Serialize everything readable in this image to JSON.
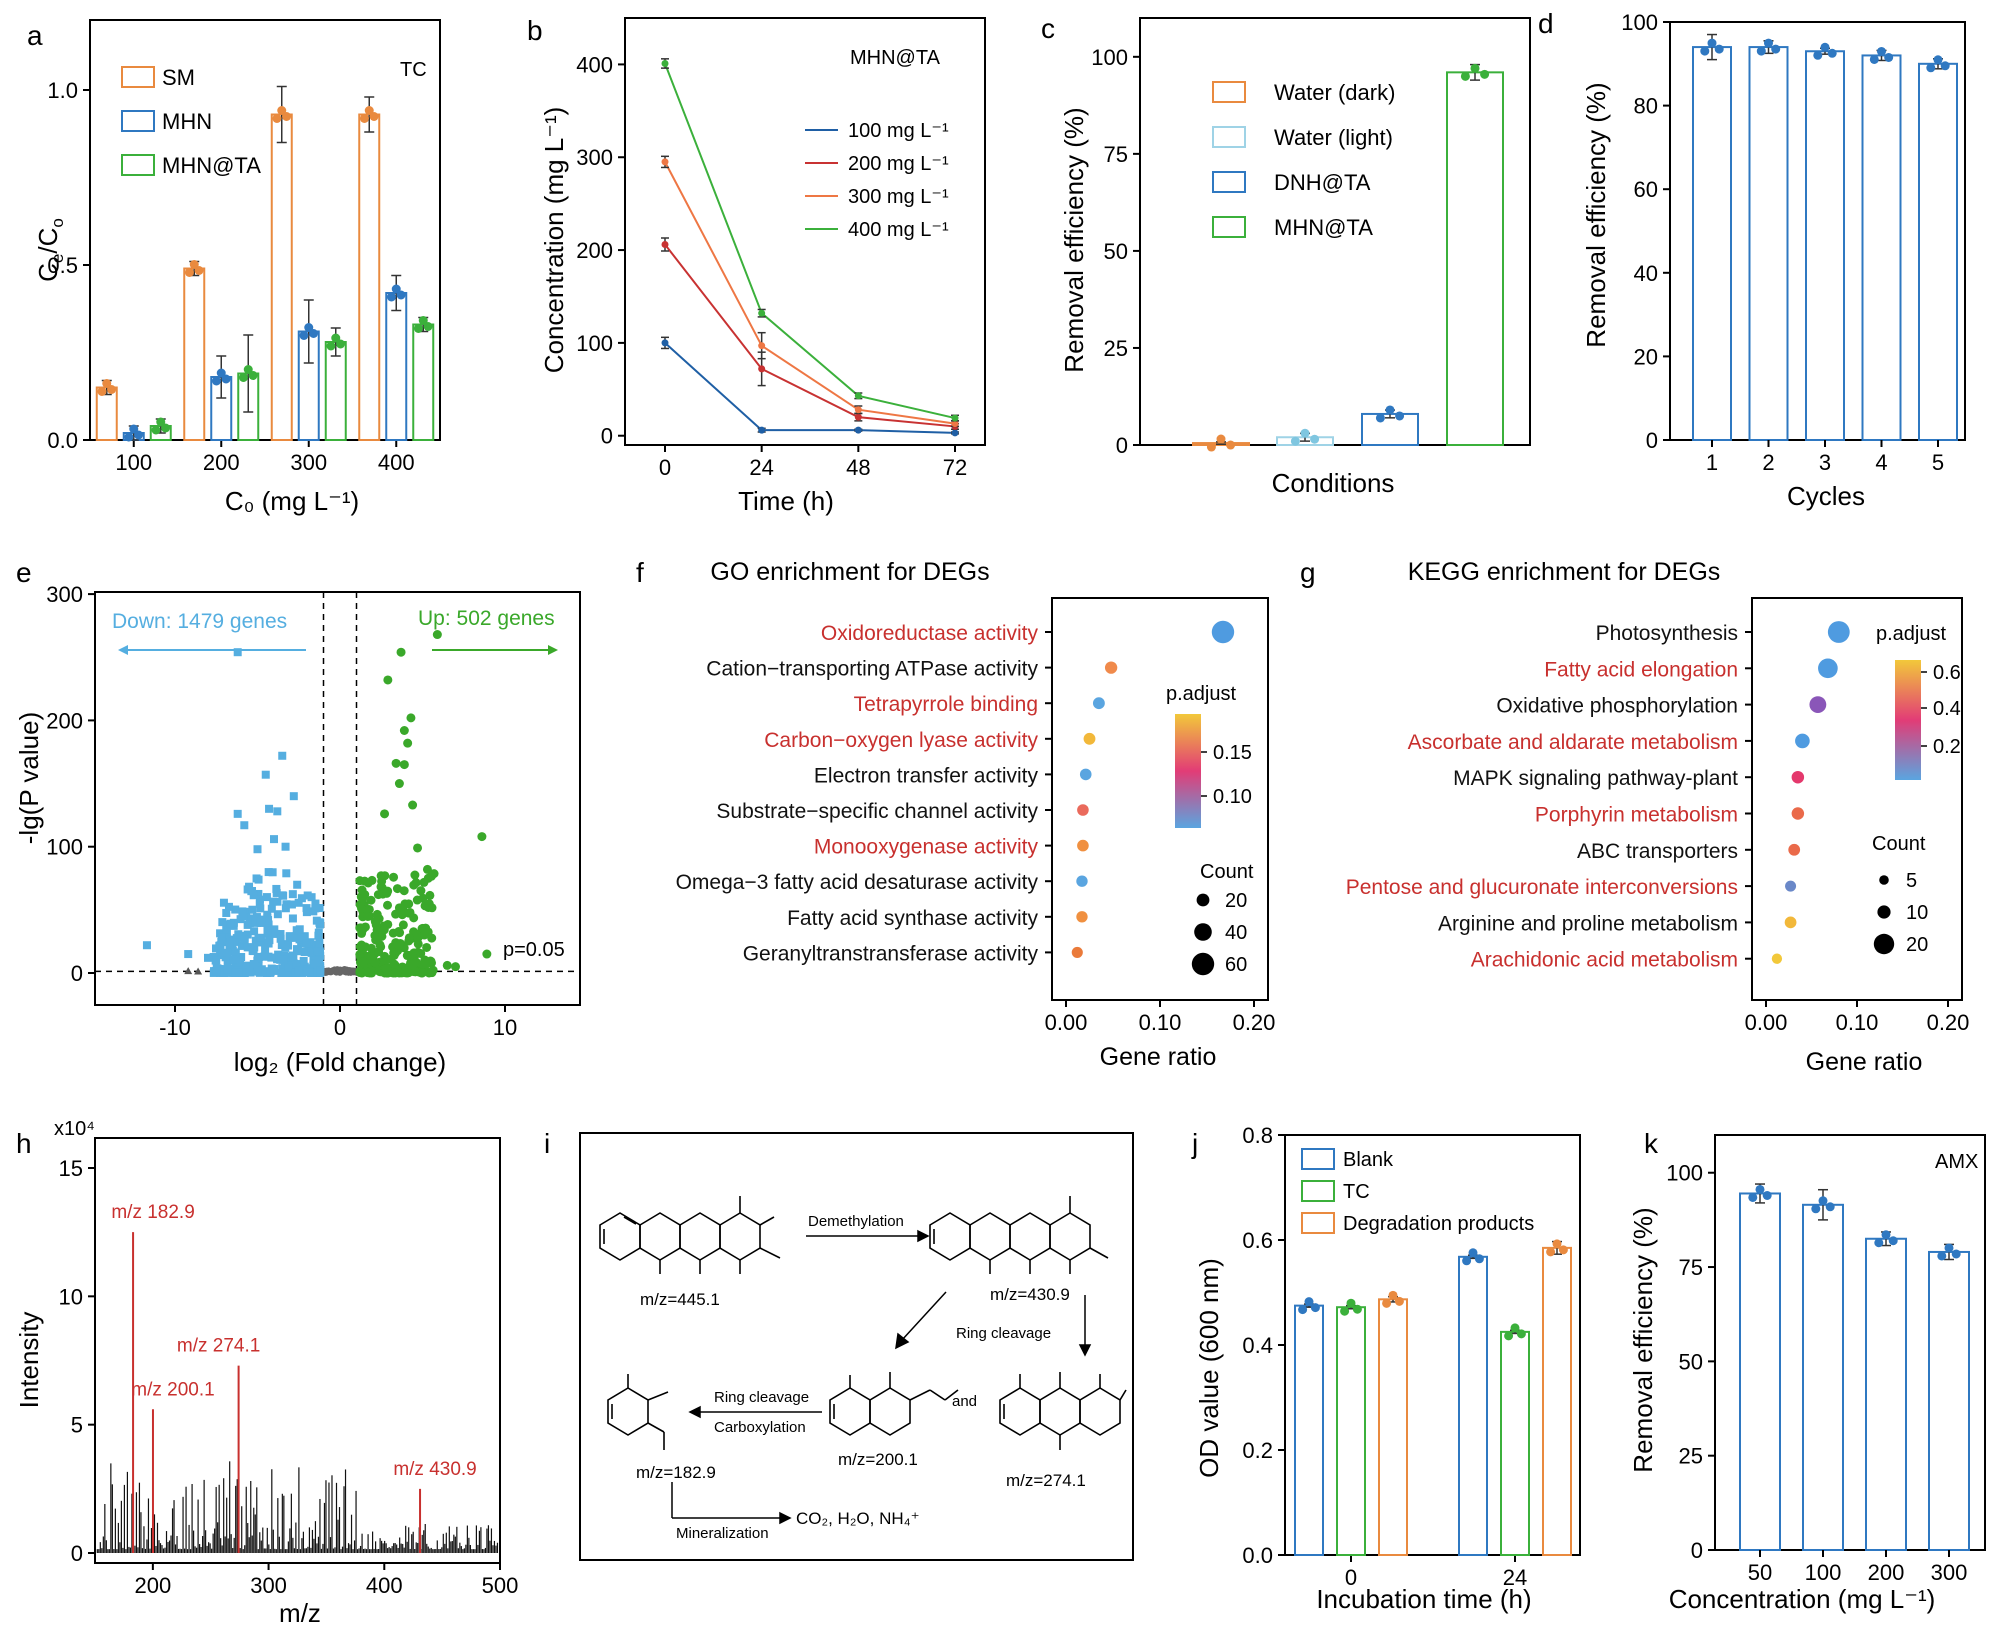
{
  "chart_data": [
    {
      "panel": "a",
      "type": "bar",
      "xlabel": "C₀ (mg L⁻¹)",
      "ylabel_main": "C",
      "ylabel_sub1": "e",
      "ylabel_mid": "/C",
      "ylabel_sub2": "o",
      "annotation": "TC",
      "categories": [
        "100",
        "200",
        "300",
        "400"
      ],
      "yticks": [
        "0.0",
        "0.5",
        "1.0"
      ],
      "ylim": [
        0,
        1.2
      ],
      "series": [
        {
          "name": "SM",
          "color": "#e98a3f",
          "values": [
            0.15,
            0.49,
            0.93,
            0.93
          ],
          "err": [
            0.02,
            0.02,
            0.08,
            0.05
          ]
        },
        {
          "name": "MHN",
          "color": "#2f78c1",
          "values": [
            0.02,
            0.18,
            0.31,
            0.42
          ],
          "err": [
            0.02,
            0.06,
            0.09,
            0.05
          ]
        },
        {
          "name": "MHN@TA",
          "color": "#3bb03b",
          "values": [
            0.04,
            0.19,
            0.28,
            0.33
          ],
          "err": [
            0.02,
            0.11,
            0.04,
            0.02
          ]
        }
      ]
    },
    {
      "panel": "b",
      "type": "line",
      "xlabel": "Time (h)",
      "ylabel": "Concentration (mg L⁻¹)",
      "annotation": "MHN@TA",
      "x": [
        0,
        24,
        48,
        72
      ],
      "xticks": [
        "0",
        "24",
        "48",
        "72"
      ],
      "yticks": [
        "0",
        "100",
        "200",
        "300",
        "400"
      ],
      "ylim": [
        -10,
        450
      ],
      "series": [
        {
          "name": "100 mg L⁻¹",
          "color": "#1f5fa5",
          "values": [
            100,
            6,
            6,
            3
          ],
          "err": [
            6,
            2,
            1,
            1
          ]
        },
        {
          "name": "200 mg L⁻¹",
          "color": "#c83232",
          "values": [
            206,
            72,
            20,
            10
          ],
          "err": [
            7,
            18,
            4,
            3
          ]
        },
        {
          "name": "300 mg L⁻¹",
          "color": "#ee7744",
          "values": [
            295,
            97,
            28,
            13
          ],
          "err": [
            6,
            14,
            4,
            3
          ]
        },
        {
          "name": "400 mg L⁻¹",
          "color": "#3bb03b",
          "values": [
            401,
            132,
            43,
            19
          ],
          "err": [
            5,
            4,
            3,
            3
          ]
        }
      ]
    },
    {
      "panel": "c",
      "type": "bar",
      "xlabel": "Conditions",
      "ylabel": "Removal efficiency (%)",
      "yticks": [
        "0",
        "25",
        "50",
        "75",
        "100"
      ],
      "ylim": [
        0,
        110
      ],
      "series": [
        {
          "name": "Water (dark)",
          "color": "#e98a3f",
          "value": 0.5,
          "err": 0.3
        },
        {
          "name": "Water (light)",
          "color": "#9fd3e6",
          "value": 2.0,
          "err": 1.0
        },
        {
          "name": "DNH@TA",
          "color": "#2f78c1",
          "value": 8.0,
          "err": 1.0
        },
        {
          "name": "MHN@TA",
          "color": "#3bb03b",
          "value": 96.0,
          "err": 2.0
        }
      ]
    },
    {
      "panel": "d",
      "type": "bar",
      "xlabel": "Cycles",
      "ylabel": "Removal efficiency (%)",
      "categories": [
        "1",
        "2",
        "3",
        "4",
        "5"
      ],
      "values": [
        94,
        94,
        93,
        92,
        90
      ],
      "err": [
        3,
        1.5,
        0.7,
        1.2,
        1.2
      ],
      "yticks": [
        "0",
        "20",
        "40",
        "60",
        "80",
        "100"
      ],
      "ylim": [
        0,
        100
      ],
      "color": "#2f78c1"
    },
    {
      "panel": "e",
      "type": "scatter",
      "xlabel": "log₂ (Fold change)",
      "ylabel": "-lg(P value)",
      "down_label": "Down: 1479 genes",
      "up_label": "Up: 502 genes",
      "threshold_label": "p=0.05",
      "xticks": [
        "-10",
        "0",
        "10"
      ],
      "yticks": [
        "0",
        "100",
        "200",
        "300"
      ],
      "xlim": [
        -15,
        15
      ],
      "ylim": [
        -5,
        300
      ],
      "down_color": "#55aee0",
      "up_color": "#3aa82a"
    },
    {
      "panel": "f",
      "type": "scatter",
      "title": "GO enrichment for DEGs",
      "xlabel": "Gene ratio",
      "xticks": [
        "0.00",
        "0.10",
        "0.20"
      ],
      "xlim": [
        0,
        0.2
      ],
      "color_legend_title": "p.adjust",
      "color_ticks": [
        "0.15",
        "0.10"
      ],
      "size_legend_title": "Count",
      "size_ticks": [
        "20",
        "40",
        "60"
      ],
      "terms": [
        {
          "label": "Oxidoreductase activity",
          "red": true,
          "x": 0.167,
          "size": 60,
          "color": "#4f9be0"
        },
        {
          "label": "Cation−transporting ATPase activity",
          "red": false,
          "x": 0.048,
          "size": 18,
          "color": "#f08a4b"
        },
        {
          "label": "Tetrapyrrole binding",
          "red": true,
          "x": 0.035,
          "size": 16,
          "color": "#5aa5e0"
        },
        {
          "label": "Carbon−oxygen lyase activity",
          "red": true,
          "x": 0.025,
          "size": 16,
          "color": "#f2b83a"
        },
        {
          "label": "Electron transfer activity",
          "red": false,
          "x": 0.021,
          "size": 15,
          "color": "#5aa5e0"
        },
        {
          "label": "Substrate−specific channel activity",
          "red": false,
          "x": 0.018,
          "size": 15,
          "color": "#ea6a5c"
        },
        {
          "label": "Monooxygenase activity",
          "red": true,
          "x": 0.018,
          "size": 15,
          "color": "#f09040"
        },
        {
          "label": "Omega−3 fatty acid desaturase activity",
          "red": false,
          "x": 0.017,
          "size": 14,
          "color": "#5aa5e0"
        },
        {
          "label": "Fatty acid synthase activity",
          "red": false,
          "x": 0.017,
          "size": 14,
          "color": "#f09040"
        },
        {
          "label": "Geranyltranstransferase activity",
          "red": false,
          "x": 0.012,
          "size": 13,
          "color": "#ea7a3a"
        }
      ]
    },
    {
      "panel": "g",
      "type": "scatter",
      "title": "KEGG enrichment for DEGs",
      "xlabel": "Gene ratio",
      "xticks": [
        "0.00",
        "0.10",
        "0.20"
      ],
      "xlim": [
        0,
        0.2
      ],
      "color_legend_title": "p.adjust",
      "color_ticks": [
        "0.6",
        "0.4",
        "0.2"
      ],
      "size_legend_title": "Count",
      "size_ticks": [
        "5",
        "10",
        "20"
      ],
      "terms": [
        {
          "label": "Photosynthesis",
          "red": false,
          "x": 0.08,
          "size": 22,
          "color": "#4f9be0"
        },
        {
          "label": "Fatty acid elongation",
          "red": true,
          "x": 0.068,
          "size": 19,
          "color": "#4f9be0"
        },
        {
          "label": "Oxidative phosphorylation",
          "red": false,
          "x": 0.057,
          "size": 15,
          "color": "#8a56b8"
        },
        {
          "label": "Ascorbate and aldarate metabolism",
          "red": true,
          "x": 0.04,
          "size": 12,
          "color": "#4f9be0"
        },
        {
          "label": "MAPK signaling pathway-plant",
          "red": false,
          "x": 0.035,
          "size": 9,
          "color": "#e4386c"
        },
        {
          "label": "Porphyrin metabolism",
          "red": true,
          "x": 0.035,
          "size": 9,
          "color": "#ea6a4a"
        },
        {
          "label": "ABC transporters",
          "red": false,
          "x": 0.031,
          "size": 8,
          "color": "#ea6a4a"
        },
        {
          "label": "Pentose and glucuronate interconversions",
          "red": true,
          "x": 0.027,
          "size": 7,
          "color": "#6a88c8"
        },
        {
          "label": "Arginine and proline metabolism",
          "red": false,
          "x": 0.027,
          "size": 8,
          "color": "#f2b83a"
        },
        {
          "label": "Arachidonic acid metabolism",
          "red": true,
          "x": 0.012,
          "size": 6,
          "color": "#f2c83a"
        }
      ]
    },
    {
      "panel": "h",
      "type": "line",
      "xlabel": "m/z",
      "ylabel": "Intensity",
      "scale_label": "x10⁴",
      "xticks": [
        "200",
        "300",
        "400",
        "500"
      ],
      "xlim": [
        150,
        500
      ],
      "yticks": [
        "0",
        "5",
        "10",
        "15"
      ],
      "ylim": [
        0,
        16
      ],
      "peaks": [
        {
          "label": "m/z 182.9",
          "x": 182.9,
          "y": 12.5
        },
        {
          "label": "m/z 200.1",
          "x": 200.1,
          "y": 5.6
        },
        {
          "label": "m/z 274.1",
          "x": 274.1,
          "y": 7.3
        },
        {
          "label": "m/z 430.9",
          "x": 430.9,
          "y": 2.5
        }
      ]
    },
    {
      "panel": "i",
      "type": "diagram",
      "labels": {
        "demethylation": "Demethylation",
        "ring_cleavage_1": "Ring cleavage",
        "ring_cleavage_2": "Ring cleavage",
        "carboxylation": "Carboxylation",
        "mineralization": "Mineralization",
        "and": "and",
        "m1": "m/z=445.1",
        "m2": "m/z=430.9",
        "m3": "m/z=200.1",
        "m4": "m/z=274.1",
        "m5": "m/z=182.9",
        "products": "CO₂, H₂O, NH₄⁺"
      }
    },
    {
      "panel": "j",
      "type": "bar",
      "xlabel": "Incubation time (h)",
      "ylabel": "OD value (600 nm)",
      "categories": [
        "0",
        "24"
      ],
      "yticks": [
        "0.0",
        "0.2",
        "0.4",
        "0.6",
        "0.8"
      ],
      "ylim": [
        0,
        0.8
      ],
      "series": [
        {
          "name": "Blank",
          "color": "#2f78c1",
          "values": [
            0.475,
            0.568
          ],
          "err": [
            0.003,
            0.003
          ]
        },
        {
          "name": "TC",
          "color": "#3bb03b",
          "values": [
            0.472,
            0.425
          ],
          "err": [
            0.003,
            0.003
          ]
        },
        {
          "name": "Degradation products",
          "color": "#e98a3f",
          "values": [
            0.487,
            0.585
          ],
          "err": [
            0.005,
            0.012
          ]
        }
      ]
    },
    {
      "panel": "k",
      "type": "bar",
      "xlabel": "Concentration (mg L⁻¹)",
      "ylabel": "Removal efficiency (%)",
      "annotation": "AMX",
      "categories": [
        "50",
        "100",
        "200",
        "300"
      ],
      "values": [
        94.5,
        91.5,
        82.5,
        79.0
      ],
      "err": [
        2.5,
        4.0,
        1.8,
        2.0
      ],
      "yticks": [
        "0",
        "25",
        "50",
        "75",
        "100"
      ],
      "ylim": [
        0,
        110
      ],
      "color": "#2f78c1"
    }
  ]
}
